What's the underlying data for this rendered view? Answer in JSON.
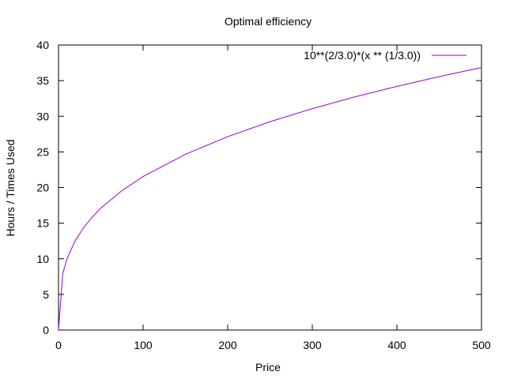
{
  "chart_data": {
    "type": "line",
    "title": "Optimal efficiency",
    "xlabel": "Price",
    "ylabel": "Hours / Times Used",
    "xlim": [
      0,
      500
    ],
    "ylim": [
      0,
      40
    ],
    "x_ticks": [
      0,
      100,
      200,
      300,
      400,
      500
    ],
    "y_ticks": [
      0,
      5,
      10,
      15,
      20,
      25,
      30,
      35,
      40
    ],
    "grid": false,
    "legend_position": "top-right",
    "series": [
      {
        "name": "10**(2/3.0)*(x ** (1/3.0))",
        "color": "#9400d3",
        "x": [
          0,
          5,
          10,
          20,
          30,
          40,
          50,
          75,
          100,
          150,
          200,
          250,
          300,
          350,
          400,
          450,
          500
        ],
        "y": [
          0,
          7.94,
          10.0,
          12.6,
          14.42,
          15.87,
          17.1,
          19.57,
          21.54,
          24.66,
          27.14,
          29.24,
          31.07,
          32.71,
          34.2,
          35.57,
          36.84
        ]
      }
    ]
  }
}
